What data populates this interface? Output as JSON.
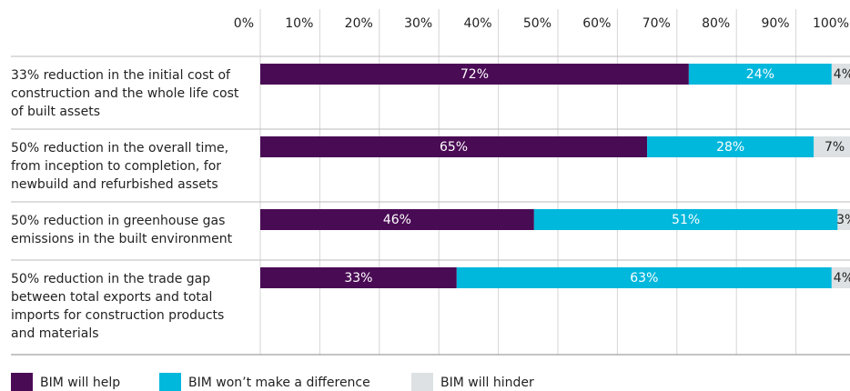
{
  "chart_data": {
    "type": "stacked-bar-horizontal",
    "categories": [
      "33% reduction in the initial cost of construction and the whole life cost of built assets",
      "50% reduction in the overall time, from inception to completion, for newbuild and refurbished assets",
      "50% reduction in greenhouse gas emissions in the built environment",
      "50% reduction in the trade gap between total exports and total imports for construction products and materials"
    ],
    "series": [
      {
        "name": "BIM will help",
        "color": "#4a0b55",
        "values": [
          72,
          65,
          46,
          33
        ],
        "value_labels": [
          "72%",
          "65%",
          "46%",
          "33%"
        ]
      },
      {
        "name": "BIM won’t make a difference",
        "color": "#00b7dc",
        "values": [
          24,
          28,
          51,
          63
        ],
        "value_labels": [
          "24%",
          "28%",
          "51%",
          "63%"
        ]
      },
      {
        "name": "BIM will hinder",
        "color": "#dde1e3",
        "values": [
          4,
          7,
          3,
          4
        ],
        "value_labels": [
          "4%",
          "7%",
          "3%",
          "4%"
        ]
      }
    ],
    "xlim": [
      0,
      100
    ],
    "xticks": [
      {
        "value": 0,
        "label": "0%"
      },
      {
        "value": 10,
        "label": "10%"
      },
      {
        "value": 20,
        "label": "20%"
      },
      {
        "value": 30,
        "label": "30%"
      },
      {
        "value": 40,
        "label": "40%"
      },
      {
        "value": 50,
        "label": "50%"
      },
      {
        "value": 60,
        "label": "60%"
      },
      {
        "value": 70,
        "label": "70%"
      },
      {
        "value": 80,
        "label": "80%"
      },
      {
        "value": 90,
        "label": "90%"
      },
      {
        "value": 100,
        "label": "100%"
      }
    ],
    "grid": true,
    "legend": "bottom"
  }
}
